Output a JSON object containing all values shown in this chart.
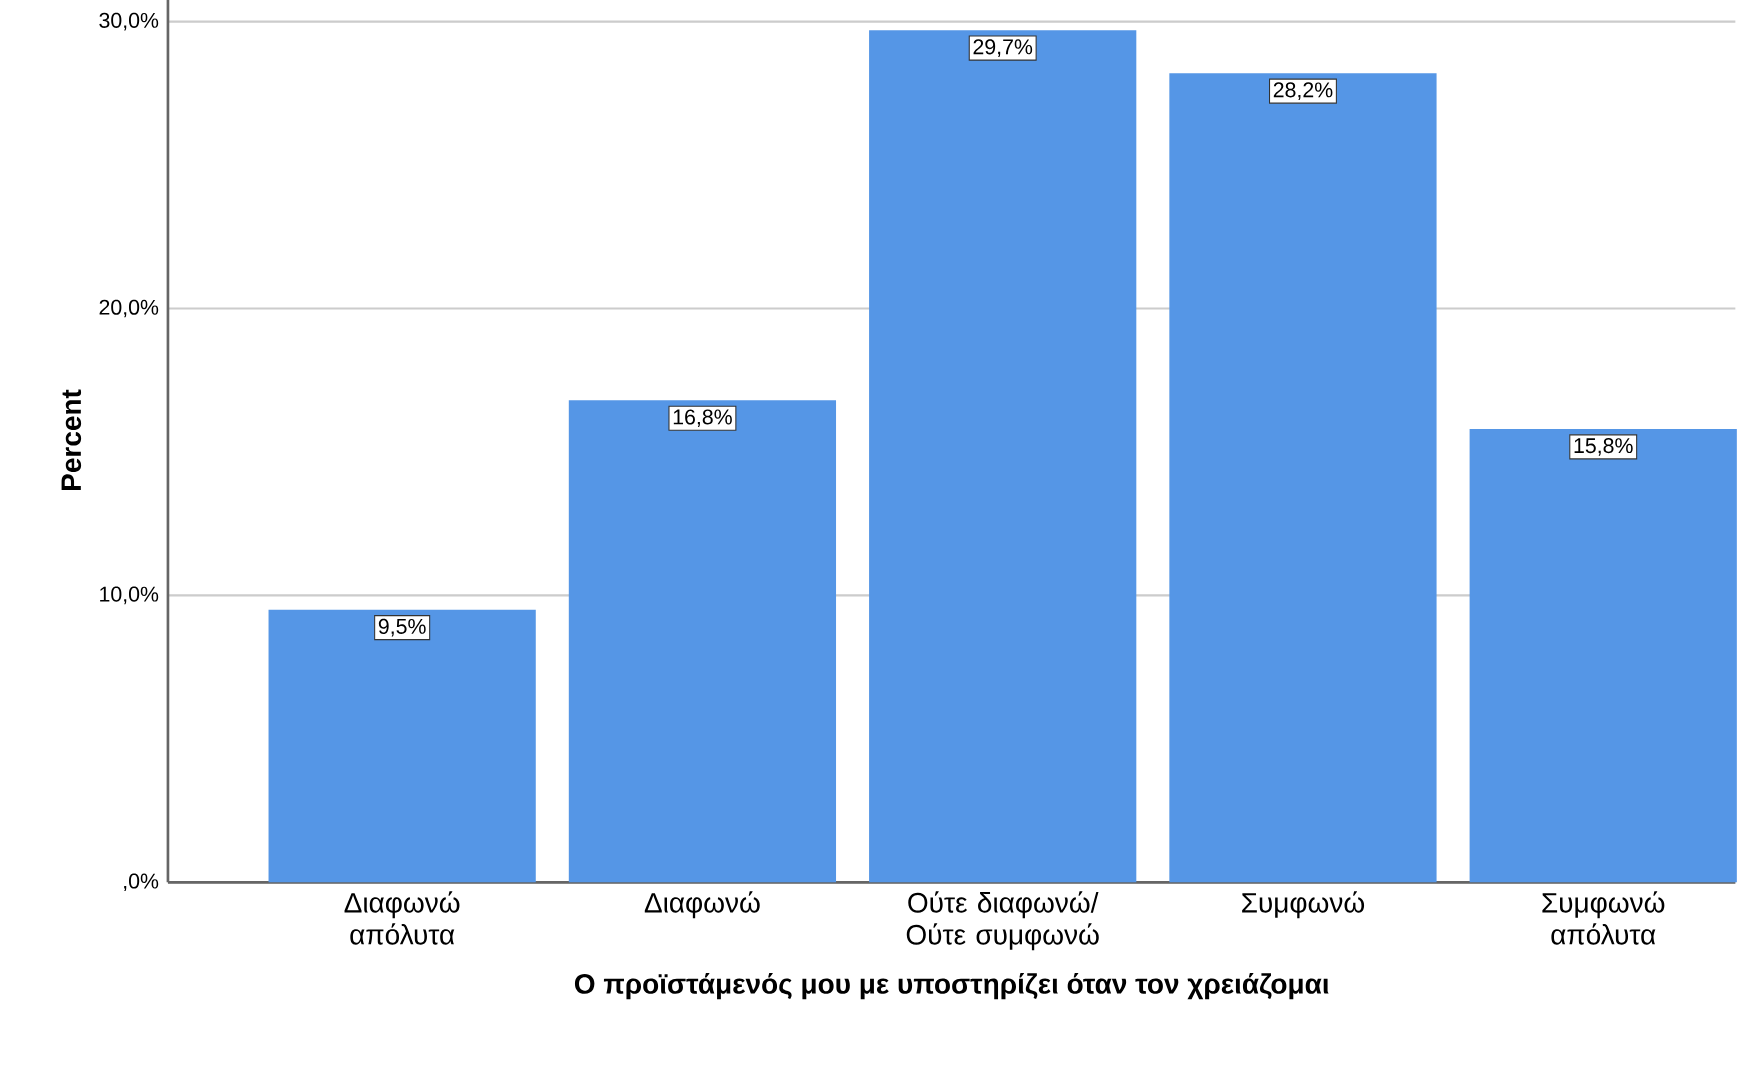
{
  "chart_data": {
    "type": "bar",
    "xlabel": "Ο προϊστάμενός μου με υποστηρίζει όταν τον χρειάζομαι",
    "ylabel": "Percent",
    "categories": [
      "Διαφωνώ απόλυτα",
      "Διαφωνώ",
      "Ούτε διαφωνώ/ Ούτε συμφωνώ",
      "Συμφωνώ",
      "Συμφωνώ απόλυτα"
    ],
    "values": [
      9.5,
      16.8,
      29.7,
      28.2,
      15.8
    ],
    "value_labels": [
      "9,5%",
      "16,8%",
      "29,7%",
      "28,2%",
      "15,8%"
    ],
    "color": "#5596e6",
    "ylim": [
      0,
      30.8
    ],
    "yticks": [
      {
        "value": 0,
        "label": ",0%"
      },
      {
        "value": 10,
        "label": "10,0%"
      },
      {
        "value": 20,
        "label": "20,0%"
      },
      {
        "value": 30,
        "label": "30,0%"
      }
    ],
    "grid": "y"
  }
}
